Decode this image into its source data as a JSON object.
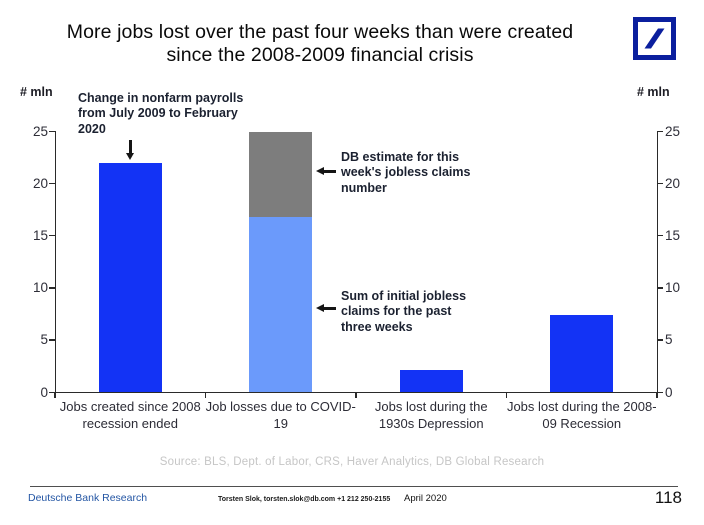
{
  "slide": {
    "title": "More jobs lost over the past four weeks than were created since the 2008-2009 financial crisis",
    "source_line": "Source: BLS, Dept. of Labor, CRS, Haver Analytics, DB Global  Research",
    "footer": {
      "brand": "Deutsche Bank Research",
      "contact": "Torsten Slok, torsten.slok@db.com  +1 212 250-2155",
      "date": "April 2020",
      "page_number": "118"
    }
  },
  "chart_data": {
    "type": "bar",
    "stacked": true,
    "title": "More jobs lost over the past four weeks than were created since the 2008-2009 financial crisis",
    "ylabel_left": "# mln",
    "ylabel_right": "# mln",
    "ylim": [
      0,
      25
    ],
    "yticks": [
      0,
      5,
      10,
      15,
      20,
      25
    ],
    "grid": false,
    "legend": "none",
    "categories": [
      "Jobs created since 2008 recession ended",
      "Job losses due to COVID-19",
      "Jobs lost during the 1930s Depression",
      "Jobs lost during the 2008-09 Recession"
    ],
    "bars": [
      {
        "segments": [
          {
            "label": "Change in nonfarm payrolls from July 2009 to February 2020",
            "value": 21.9,
            "color": "#1333f5"
          }
        ]
      },
      {
        "segments": [
          {
            "label": "Sum of initial jobless claims for the past three weeks",
            "value": 16.8,
            "color": "#6b9afb"
          },
          {
            "label": "DB estimate for this week's jobless claims number",
            "value": 8.1,
            "color": "#7d7d7d"
          }
        ]
      },
      {
        "segments": [
          {
            "label": "Jobs lost during the 1930s Depression",
            "value": 2.1,
            "color": "#1333f5"
          }
        ]
      },
      {
        "segments": [
          {
            "label": "Jobs lost during the 2008-09 Recession",
            "value": 7.4,
            "color": "#1333f5"
          }
        ]
      }
    ],
    "annotations": [
      {
        "text": "Change in nonfarm payrolls from July 2009 to February 2020",
        "arrow": "down"
      },
      {
        "text": "DB estimate for this week's jobless claims number",
        "arrow": "left"
      },
      {
        "text": "Sum of initial jobless claims for the past three weeks",
        "arrow": "left"
      }
    ],
    "colors": {
      "dark_blue": "#1333f5",
      "light_blue": "#6b9afb",
      "gray": "#7d7d7d"
    }
  }
}
